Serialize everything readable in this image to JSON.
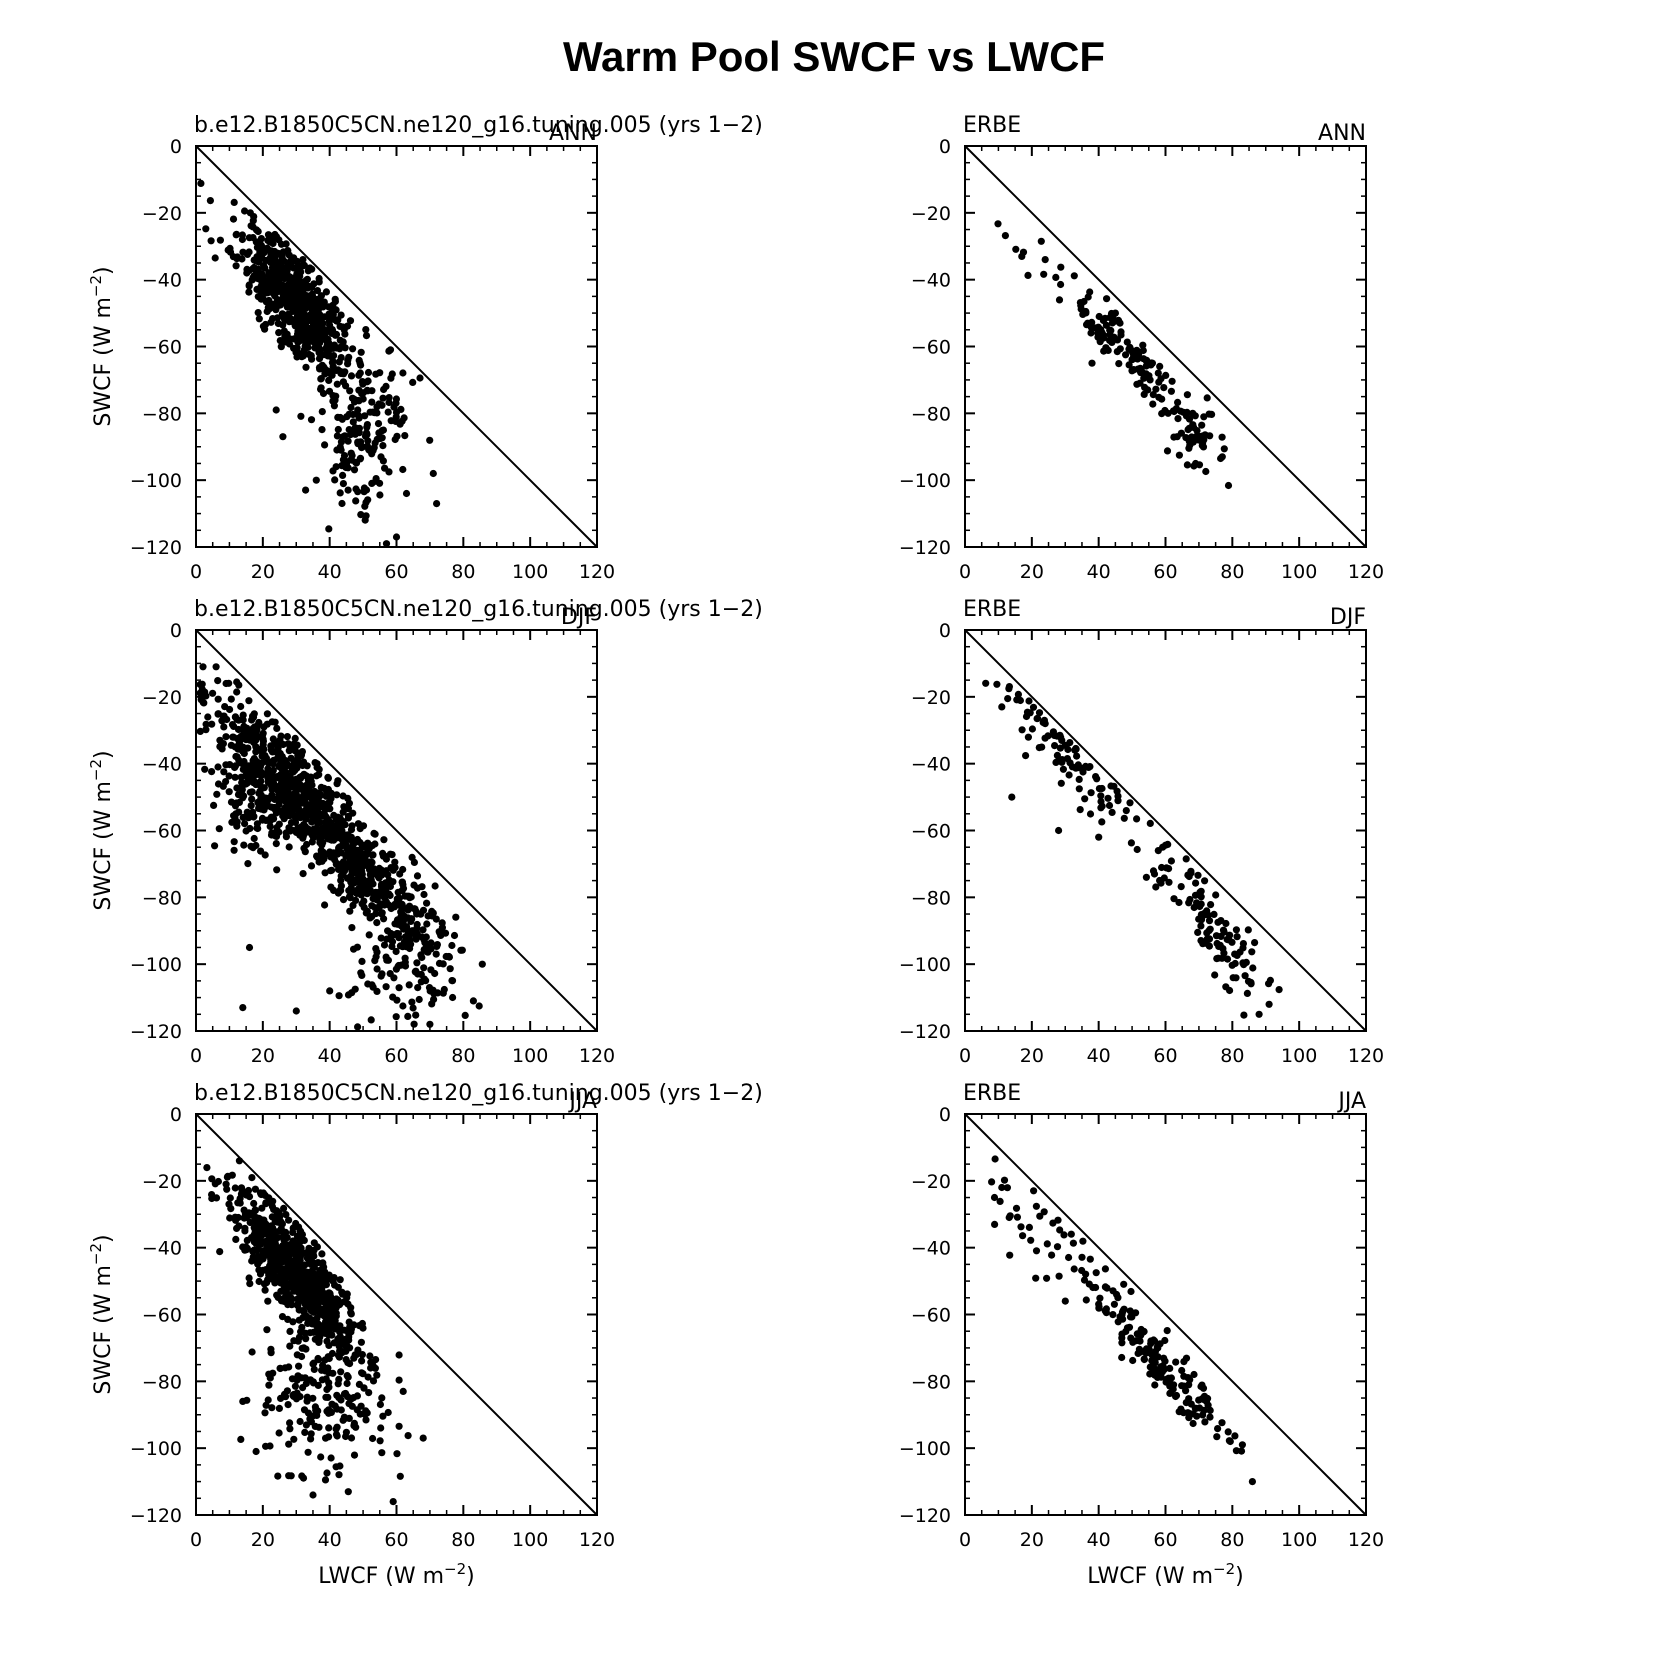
{
  "figure": {
    "title": "Warm Pool SWCF vs LWCF",
    "xlabel": "LWCF",
    "ylabel": "SWCF",
    "units_prefix": "(W m",
    "units_exp": "−2",
    "units_suffix": ")"
  },
  "chart_data": [
    {
      "type": "scatter",
      "left_title": "b.e12.B1850C5CN.ne120_g16.tuning.005 (yrs 1−2)",
      "right_title": "ANN",
      "xlim": [
        0,
        120
      ],
      "ylim": [
        -120,
        0
      ],
      "xticks": [
        "0",
        "20",
        "40",
        "60",
        "80",
        "100",
        "120"
      ],
      "yticks": [
        "0",
        "−20",
        "−40",
        "−60",
        "−80",
        "−100",
        "−120"
      ],
      "reference_line": "one-to-one",
      "grid": false,
      "clusters": [
        {
          "n": 600,
          "center": [
            30,
            -47
          ],
          "spread": [
            9,
            7
          ],
          "along": -1.05,
          "seed": 11
        },
        {
          "n": 180,
          "center": [
            50,
            -86
          ],
          "spread": [
            7,
            13
          ],
          "along": 0,
          "seed": 12
        }
      ],
      "outliers": [
        [
          72,
          -107
        ],
        [
          71,
          -98
        ],
        [
          60,
          -117
        ],
        [
          57,
          -119
        ],
        [
          26,
          -87
        ],
        [
          24,
          -79
        ],
        [
          63,
          -104
        ],
        [
          36,
          -100
        ]
      ]
    },
    {
      "type": "scatter",
      "left_title": "ERBE",
      "right_title": "ANN",
      "xlim": [
        0,
        120
      ],
      "ylim": [
        -120,
        0
      ],
      "xticks": [
        "0",
        "20",
        "40",
        "60",
        "80",
        "100",
        "120"
      ],
      "yticks": [
        "0",
        "−20",
        "−40",
        "−60",
        "−80",
        "−100",
        "−120"
      ],
      "reference_line": "one-to-one",
      "grid": false,
      "clusters": [
        {
          "n": 150,
          "center": [
            50,
            -64
          ],
          "spread": [
            13,
            4
          ],
          "along": -1.05,
          "seed": 21
        },
        {
          "n": 30,
          "center": [
            68,
            -88
          ],
          "spread": [
            4,
            5
          ],
          "along": 0,
          "seed": 22
        }
      ],
      "outliers": [
        [
          24,
          -34
        ],
        [
          77,
          -93
        ],
        [
          38,
          -65
        ],
        [
          69,
          -95
        ]
      ]
    },
    {
      "type": "scatter",
      "left_title": "b.e12.B1850C5CN.ne120_g16.tuning.005 (yrs 1−2)",
      "right_title": "DJF",
      "xlim": [
        0,
        120
      ],
      "ylim": [
        -120,
        0
      ],
      "xticks": [
        "0",
        "20",
        "40",
        "60",
        "80",
        "100",
        "120"
      ],
      "yticks": [
        "0",
        "−20",
        "−40",
        "−60",
        "−80",
        "−100",
        "−120"
      ],
      "reference_line": "one-to-one",
      "grid": false,
      "clusters": [
        {
          "n": 900,
          "center": [
            38,
            -58
          ],
          "spread": [
            17,
            7
          ],
          "along": -1.05,
          "seed": 31
        },
        {
          "n": 200,
          "center": [
            20,
            -50
          ],
          "spread": [
            9,
            9
          ],
          "along": 0,
          "seed": 32
        },
        {
          "n": 120,
          "center": [
            62,
            -100
          ],
          "spread": [
            8,
            9
          ],
          "along": 0,
          "seed": 33
        }
      ],
      "outliers": [
        [
          14,
          -113
        ],
        [
          30,
          -114
        ],
        [
          6,
          -11
        ],
        [
          9,
          -16
        ],
        [
          83,
          -111
        ],
        [
          70,
          -118
        ],
        [
          16,
          -95
        ],
        [
          40,
          -108
        ]
      ]
    },
    {
      "type": "scatter",
      "left_title": "ERBE",
      "right_title": "DJF",
      "xlim": [
        0,
        120
      ],
      "ylim": [
        -120,
        0
      ],
      "xticks": [
        "0",
        "20",
        "40",
        "60",
        "80",
        "100",
        "120"
      ],
      "yticks": [
        "0",
        "−20",
        "−40",
        "−60",
        "−80",
        "−100",
        "−120"
      ],
      "reference_line": "one-to-one",
      "grid": false,
      "clusters": [
        {
          "n": 90,
          "center": [
            30,
            -36
          ],
          "spread": [
            11,
            6
          ],
          "along": -1.05,
          "seed": 41
        },
        {
          "n": 110,
          "center": [
            72,
            -86
          ],
          "spread": [
            10,
            6
          ],
          "along": -1.15,
          "seed": 42
        }
      ],
      "outliers": [
        [
          11,
          -23
        ],
        [
          14,
          -50
        ],
        [
          28,
          -60
        ],
        [
          88,
          -115
        ],
        [
          91,
          -112
        ],
        [
          40,
          -62
        ]
      ]
    },
    {
      "type": "scatter",
      "left_title": "b.e12.B1850C5CN.ne120_g16.tuning.005 (yrs 1−2)",
      "right_title": "JJA",
      "xlim": [
        0,
        120
      ],
      "ylim": [
        -120,
        0
      ],
      "xticks": [
        "0",
        "20",
        "40",
        "60",
        "80",
        "100",
        "120"
      ],
      "yticks": [
        "0",
        "−20",
        "−40",
        "−60",
        "−80",
        "−100",
        "−120"
      ],
      "reference_line": "one-to-one",
      "grid": false,
      "clusters": [
        {
          "n": 700,
          "center": [
            30,
            -48
          ],
          "spread": [
            10,
            7
          ],
          "along": -1.05,
          "seed": 51
        },
        {
          "n": 200,
          "center": [
            38,
            -84
          ],
          "spread": [
            9,
            12
          ],
          "along": 0,
          "seed": 52
        }
      ],
      "outliers": [
        [
          68,
          -97
        ],
        [
          62,
          -83
        ],
        [
          59,
          -116
        ],
        [
          35,
          -114
        ],
        [
          14,
          -86
        ],
        [
          18,
          -101
        ],
        [
          9,
          -21
        ],
        [
          13,
          -14
        ]
      ]
    },
    {
      "type": "scatter",
      "left_title": "ERBE",
      "right_title": "JJA",
      "xlim": [
        0,
        120
      ],
      "ylim": [
        -120,
        0
      ],
      "xticks": [
        "0",
        "20",
        "40",
        "60",
        "80",
        "100",
        "120"
      ],
      "yticks": [
        "0",
        "−20",
        "−40",
        "−60",
        "−80",
        "−100",
        "−120"
      ],
      "reference_line": "one-to-one",
      "grid": false,
      "clusters": [
        {
          "n": 180,
          "center": [
            55,
            -70
          ],
          "spread": [
            13,
            5
          ],
          "along": -1.1,
          "seed": 61
        },
        {
          "n": 25,
          "center": [
            17,
            -32
          ],
          "spread": [
            5,
            6
          ],
          "along": -1.0,
          "seed": 62
        }
      ],
      "outliers": [
        [
          86,
          -110
        ],
        [
          83,
          -99
        ],
        [
          30,
          -56
        ],
        [
          11,
          -22
        ]
      ]
    }
  ]
}
